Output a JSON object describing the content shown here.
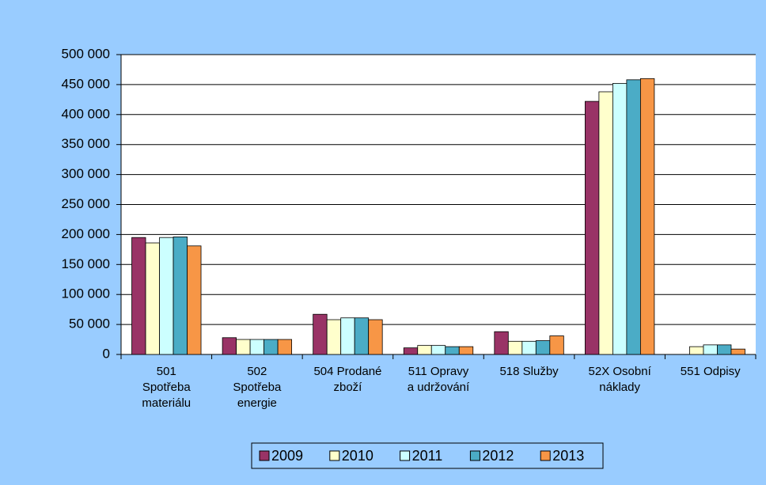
{
  "chart_data": {
    "type": "bar",
    "categories": [
      [
        "501",
        "Spotřeba",
        "materiálu"
      ],
      [
        "502",
        "Spotřeba",
        "energie"
      ],
      [
        "504 Prodané",
        "zboží"
      ],
      [
        "511 Opravy",
        "a udržování"
      ],
      [
        "518 Služby"
      ],
      [
        "52X Osobní",
        "náklady"
      ],
      [
        "551 Odpisy"
      ]
    ],
    "series": [
      {
        "name": "2009",
        "color": "#993366",
        "values": [
          195000,
          28000,
          67000,
          11000,
          38000,
          422000,
          0
        ]
      },
      {
        "name": "2010",
        "color": "#ffffcc",
        "values": [
          186000,
          25000,
          58000,
          15000,
          22000,
          438000,
          13000
        ]
      },
      {
        "name": "2011",
        "color": "#ccffff",
        "values": [
          195000,
          25000,
          61000,
          15000,
          22000,
          452000,
          16000
        ]
      },
      {
        "name": "2012",
        "color": "#4bacc6",
        "values": [
          196000,
          25000,
          61000,
          13000,
          23000,
          458000,
          16000
        ]
      },
      {
        "name": "2013",
        "color": "#f79646",
        "values": [
          181000,
          25000,
          58000,
          13000,
          31000,
          460000,
          9000
        ]
      }
    ],
    "ylim": [
      0,
      500000
    ],
    "yticks": [
      0,
      {
        "value": 50000,
        "label": "50 000"
      },
      {
        "value": 100000,
        "label": "100 000"
      },
      {
        "value": 150000,
        "label": "150 000"
      },
      {
        "value": 200000,
        "label": "200 000"
      },
      {
        "value": 250000,
        "label": "250 000"
      },
      {
        "value": 300000,
        "label": "300 000"
      },
      {
        "value": 350000,
        "label": "350 000"
      },
      {
        "value": 400000,
        "label": "400 000"
      },
      {
        "value": 450000,
        "label": "450 000"
      },
      {
        "value": 500000,
        "label": "500 000"
      }
    ],
    "grid": true,
    "legend": "bottom"
  }
}
